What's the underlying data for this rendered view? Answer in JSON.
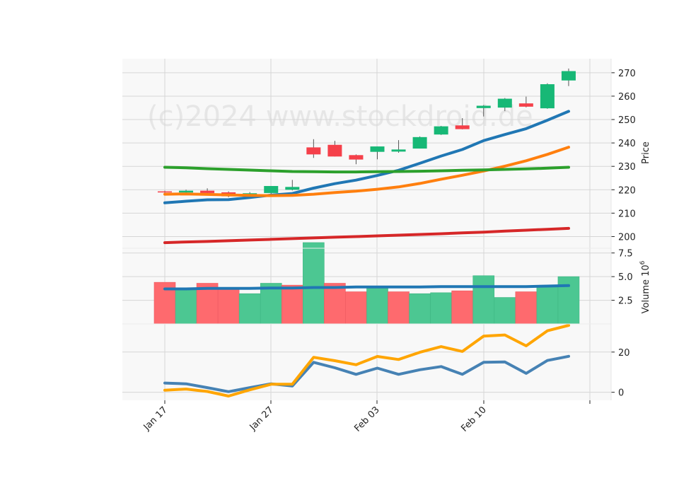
{
  "watermark": "(c)2024 www.stockdroid.de",
  "chart_data": {
    "type": "candlestick",
    "x_tick_labels": [
      "Jan 17",
      "Jan 27",
      "Feb 03",
      "Feb 10"
    ],
    "dates": [
      "2024-01-17",
      "2024-01-18",
      "2024-01-19",
      "2024-01-22",
      "2024-01-23",
      "2024-01-24",
      "2024-01-25",
      "2024-01-26",
      "2024-01-29",
      "2024-01-30",
      "2024-01-31",
      "2024-02-01",
      "2024-02-02",
      "2024-02-05",
      "2024-02-06",
      "2024-02-07",
      "2024-02-08",
      "2024-02-09",
      "2024-02-12",
      "2024-02-13"
    ],
    "price": {
      "ylabel": "Price",
      "yticks": [
        200,
        210,
        220,
        230,
        240,
        250,
        260,
        270
      ],
      "ylim": [
        195,
        276
      ],
      "candles": [
        {
          "o": 219.3,
          "h": 219.6,
          "l": 218.6,
          "c": 218.9
        },
        {
          "o": 218.8,
          "h": 220.0,
          "l": 218.5,
          "c": 219.6
        },
        {
          "o": 219.6,
          "h": 220.6,
          "l": 218.3,
          "c": 218.6
        },
        {
          "o": 218.9,
          "h": 219.3,
          "l": 216.8,
          "c": 217.2
        },
        {
          "o": 217.0,
          "h": 219.0,
          "l": 216.5,
          "c": 218.5
        },
        {
          "o": 218.6,
          "h": 221.6,
          "l": 217.5,
          "c": 221.6
        },
        {
          "o": 220.0,
          "h": 224.2,
          "l": 219.7,
          "c": 221.2
        },
        {
          "o": 238.1,
          "h": 241.6,
          "l": 233.6,
          "c": 235.1
        },
        {
          "o": 239.2,
          "h": 240.9,
          "l": 234.2,
          "c": 234.2
        },
        {
          "o": 234.8,
          "h": 235.1,
          "l": 230.9,
          "c": 232.9
        },
        {
          "o": 236.2,
          "h": 238.5,
          "l": 233.0,
          "c": 238.5
        },
        {
          "o": 236.3,
          "h": 241.2,
          "l": 235.8,
          "c": 237.2
        },
        {
          "o": 237.6,
          "h": 242.8,
          "l": 237.6,
          "c": 242.5
        },
        {
          "o": 243.6,
          "h": 247.3,
          "l": 243.4,
          "c": 247.1
        },
        {
          "o": 247.5,
          "h": 250.6,
          "l": 245.8,
          "c": 245.9
        },
        {
          "o": 254.9,
          "h": 256.2,
          "l": 251.3,
          "c": 255.9
        },
        {
          "o": 255.1,
          "h": 259.2,
          "l": 253.6,
          "c": 258.9
        },
        {
          "o": 256.9,
          "h": 259.8,
          "l": 255.2,
          "c": 255.5
        },
        {
          "o": 254.8,
          "h": 265.5,
          "l": 254.6,
          "c": 265.1
        },
        {
          "o": 266.7,
          "h": 271.8,
          "l": 264.3,
          "c": 270.7
        }
      ],
      "lines": [
        {
          "color": "#2077b4",
          "values": [
            214.4,
            215.1,
            215.7,
            215.8,
            216.7,
            217.7,
            218.4,
            220.7,
            222.6,
            224.1,
            226.1,
            228.3,
            231.3,
            234.4,
            237.2,
            241.0,
            243.6,
            246.1,
            249.7,
            253.5
          ]
        },
        {
          "color": "#ff7f0e",
          "values": [
            218.1,
            218.2,
            218.0,
            217.8,
            217.6,
            217.5,
            217.6,
            218.1,
            218.8,
            219.4,
            220.2,
            221.2,
            222.7,
            224.5,
            226.2,
            228.0,
            230.1,
            232.4,
            235.1,
            238.2
          ]
        },
        {
          "color": "#2ca02c",
          "values": [
            229.6,
            229.4,
            229.0,
            228.7,
            228.4,
            228.1,
            227.8,
            227.7,
            227.6,
            227.6,
            227.7,
            227.8,
            227.9,
            228.1,
            228.3,
            228.5,
            228.7,
            228.9,
            229.2,
            229.6
          ]
        },
        {
          "color": "#d62728",
          "values": [
            197.4,
            197.7,
            197.9,
            198.2,
            198.5,
            198.8,
            199.1,
            199.4,
            199.7,
            200.0,
            200.3,
            200.6,
            200.9,
            201.2,
            201.6,
            201.9,
            202.3,
            202.7,
            203.1,
            203.5
          ]
        }
      ]
    },
    "volume": {
      "ylabel": "Volume  10",
      "ylabel_exponent": "6",
      "yticks": [
        2.5,
        5.0,
        7.5
      ],
      "ytick_labels": [
        "2.5",
        "5.0",
        "7.5"
      ],
      "ylim": [
        0,
        8.0
      ],
      "bars": [
        4.4,
        3.7,
        4.3,
        3.8,
        3.2,
        4.3,
        4.1,
        8.6,
        4.3,
        3.4,
        3.9,
        3.4,
        3.2,
        3.3,
        3.5,
        5.1,
        2.8,
        3.4,
        3.9,
        5.0
      ],
      "up": [
        false,
        true,
        false,
        false,
        true,
        true,
        false,
        true,
        false,
        false,
        true,
        false,
        true,
        true,
        false,
        true,
        true,
        false,
        true,
        true
      ],
      "ma": {
        "color": "#2077b4",
        "values": [
          3.7,
          3.7,
          3.75,
          3.75,
          3.75,
          3.8,
          3.8,
          3.85,
          3.85,
          3.9,
          3.9,
          3.9,
          3.9,
          3.95,
          3.95,
          3.95,
          3.95,
          3.95,
          4.0,
          4.05
        ]
      }
    },
    "indicator": {
      "yticks": [
        0,
        20
      ],
      "ylim": [
        -4,
        34
      ],
      "lines": [
        {
          "color": "#4682b4",
          "values": [
            4.6,
            4.2,
            2.3,
            0.3,
            2.3,
            4.2,
            3.1,
            14.9,
            12.2,
            8.9,
            12.0,
            8.9,
            11.2,
            12.8,
            8.9,
            14.9,
            15.1,
            9.4,
            15.8,
            17.9
          ]
        },
        {
          "color": "#ffa500",
          "values": [
            1.0,
            1.6,
            0.4,
            -1.9,
            1.2,
            4.0,
            4.0,
            17.4,
            15.7,
            13.7,
            17.8,
            16.3,
            19.9,
            22.7,
            20.3,
            27.9,
            28.5,
            23.1,
            30.6,
            33.3
          ]
        }
      ]
    }
  }
}
